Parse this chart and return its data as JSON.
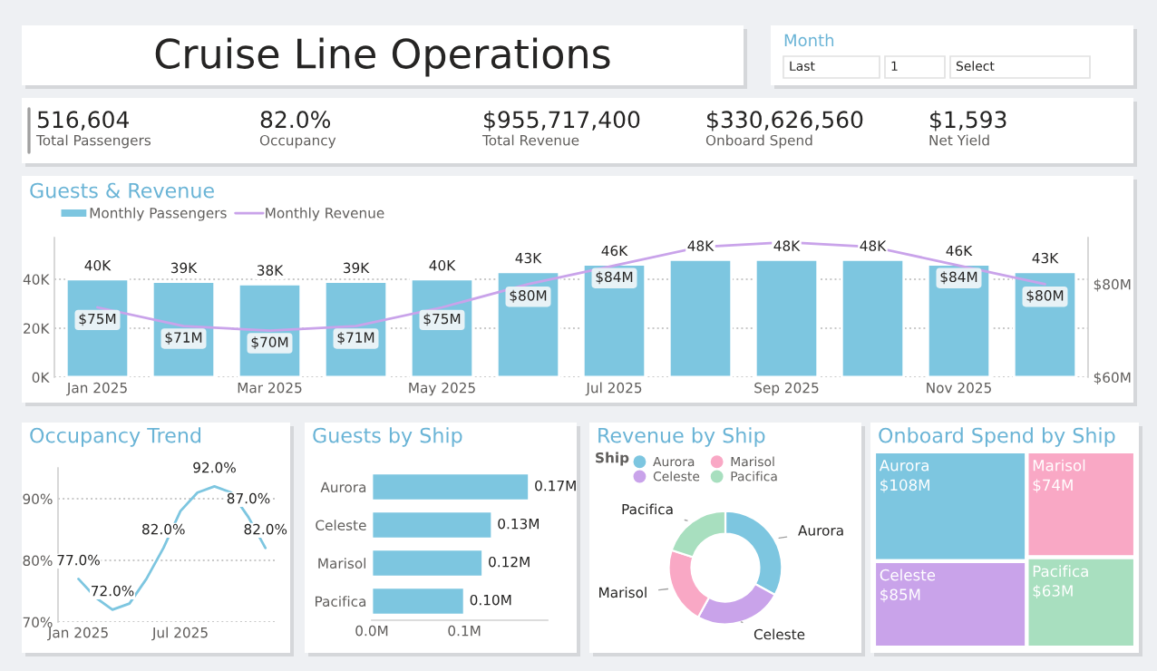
{
  "chart_data": [
    {
      "type": "other",
      "title": "Cruise Line Operations",
      "annotations": [
        "516,604",
        "Total Passengers",
        "82.0%",
        "Occupancy",
        "$955,717,400",
        "Total Revenue",
        "$330,626,560",
        "Onboard Spend",
        "$1,593",
        "Net Yield"
      ]
    },
    {
      "type": "other",
      "title": "Month",
      "annotations": [
        "Last",
        "1",
        "Select"
      ]
    },
    {
      "type": "bar",
      "title": "Guests & Revenue",
      "categories": [
        "Jan 2025",
        null,
        "Mar 2025",
        null,
        "May 2025",
        null,
        "Jul 2025",
        null,
        "Sep 2025",
        null,
        "Nov 2025",
        null
      ],
      "series": [
        {
          "name": "Monthly Passengers",
          "type": "bar",
          "color": "#7dc6e0",
          "values": [
            40000,
            39000,
            38000,
            39000,
            40000,
            43000,
            46000,
            48000,
            48000,
            48000,
            46000,
            43000
          ],
          "value_labels": [
            "40K",
            "39K",
            "38K",
            "39K",
            "40K",
            "43K",
            "46K",
            "48K",
            "48K",
            "48K",
            "46K",
            "43K"
          ]
        },
        {
          "name": "Monthly Revenue",
          "type": "line",
          "axis": "y2",
          "color": "#c9a3ea",
          "values": [
            75,
            71,
            70,
            71,
            75,
            80,
            84,
            88,
            89,
            88,
            84,
            80
          ],
          "value_labels": [
            "$75M",
            "$71M",
            "$70M",
            "$71M",
            "$75M",
            "$80M",
            "$84M",
            null,
            null,
            null,
            "$84M",
            "$80M"
          ]
        }
      ],
      "ylim": [
        0,
        57000
      ],
      "yticks": [
        {
          "value": 0,
          "label": "0K"
        },
        {
          "value": 20000,
          "label": "20K"
        },
        {
          "value": 40000,
          "label": "40K"
        }
      ],
      "y2lim": [
        60,
        90
      ],
      "y2ticks": [
        {
          "value": 60,
          "label": "$60M"
        },
        {
          "value": 80,
          "label": "$80M"
        }
      ],
      "grid": "y",
      "legend": "top left"
    },
    {
      "type": "line",
      "title": "Occupancy Trend",
      "categories": [
        "Jan 2025",
        null,
        null,
        null,
        null,
        null,
        "Jul 2025",
        null,
        null,
        null,
        null,
        null
      ],
      "series": [
        {
          "color": "#7dc6e0",
          "values": [
            77,
            74,
            72,
            73,
            77,
            82,
            88,
            91,
            92,
            91,
            87,
            82
          ],
          "value_labels": [
            "77.0%",
            null,
            "72.0%",
            null,
            null,
            "82.0%",
            null,
            null,
            "92.0%",
            null,
            "87.0%",
            "82.0%"
          ]
        }
      ],
      "ylim": [
        70,
        95
      ],
      "yticks": [
        {
          "value": 70,
          "label": "70%"
        },
        {
          "value": 80,
          "label": "80%"
        },
        {
          "value": 90,
          "label": "90%"
        }
      ],
      "grid": "y",
      "marker": "none",
      "line_style": "solid"
    },
    {
      "type": "bar",
      "title": "Guests by Ship",
      "orientation": "horizontal",
      "categories": [
        "Aurora",
        "Celeste",
        "Marisol",
        "Pacifica"
      ],
      "series": [
        {
          "color": "#7dc6e0",
          "values": [
            0.17,
            0.13,
            0.12,
            0.1
          ],
          "value_labels": [
            "0.17M",
            "0.13M",
            "0.12M",
            "0.10M"
          ]
        }
      ],
      "xlim": [
        0,
        0.19
      ],
      "xticks": [
        {
          "value": 0,
          "label": "0.0M"
        },
        {
          "value": 0.1,
          "label": "0.1M"
        }
      ]
    },
    {
      "type": "donut",
      "title": "Revenue by Ship",
      "legend_title": "Ship",
      "legend": "top left",
      "categories": [
        "Aurora",
        "Celeste",
        "Marisol",
        "Pacifica"
      ],
      "values": [
        33,
        25,
        22,
        20
      ],
      "colors": [
        "#7dc6e0",
        "#c9a3ea",
        "#f9a8c5",
        "#a8dfbf"
      ]
    },
    {
      "type": "other",
      "title": "Onboard Spend by Ship",
      "categories": [
        "Aurora",
        "Celeste",
        "Marisol",
        "Pacifica"
      ],
      "values": [
        108,
        85,
        74,
        63
      ],
      "value_labels": [
        "$108M",
        "$85M",
        "$74M",
        "$63M"
      ],
      "colors": [
        "#7dc6e0",
        "#c9a3ea",
        "#f9a8c5",
        "#a8dfbf"
      ]
    }
  ]
}
